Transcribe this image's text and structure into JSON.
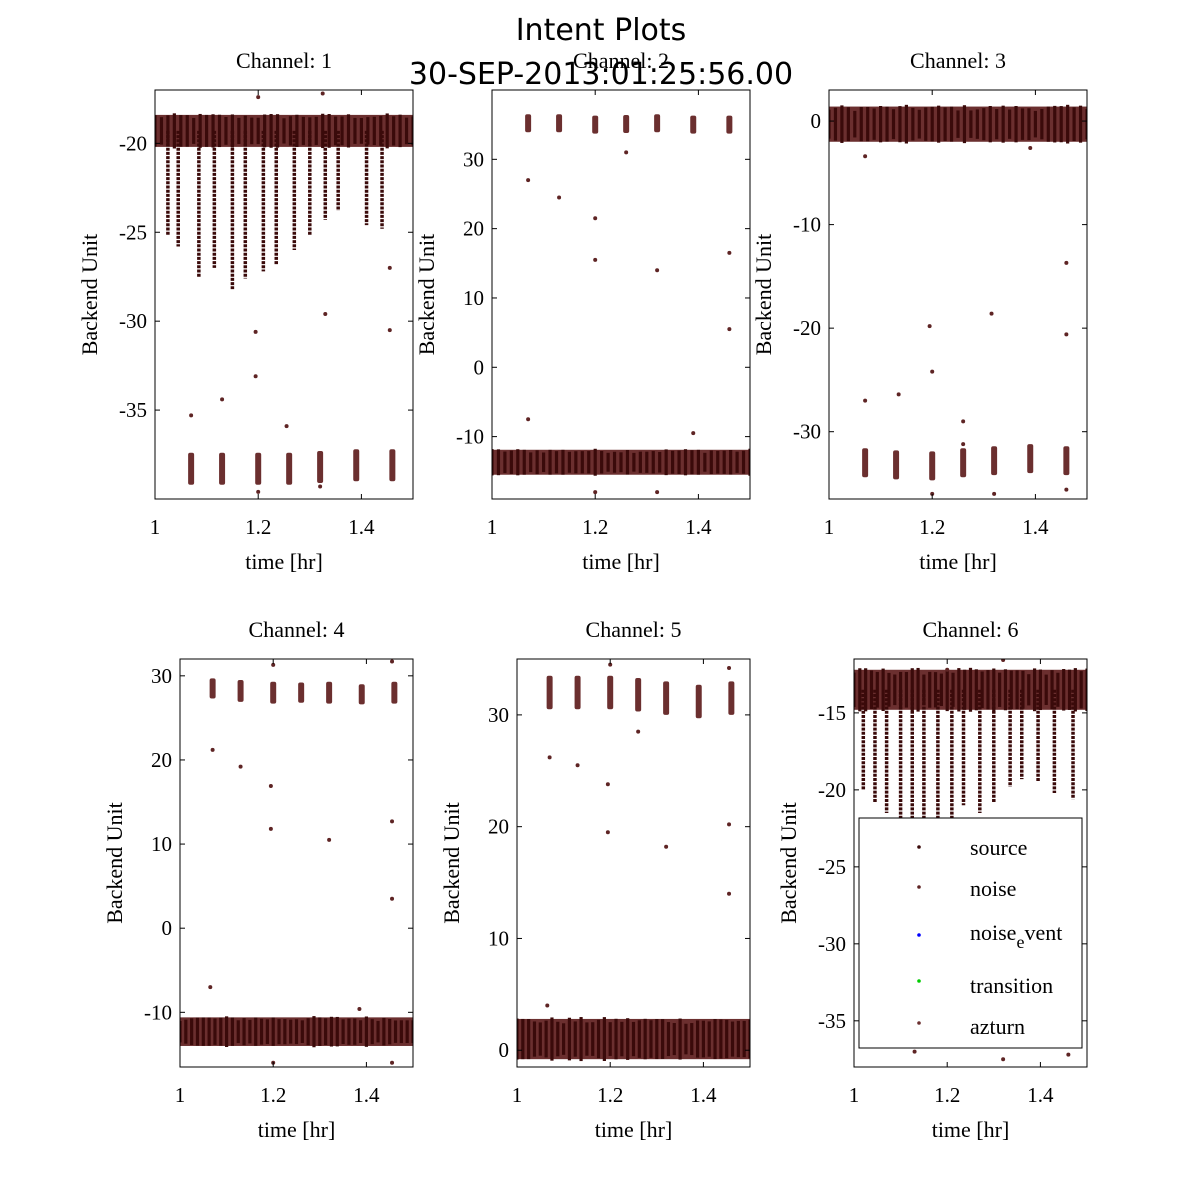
{
  "suptitle": {
    "line1": "Intent Plots",
    "line2": "30-SEP-2013:01:25:56.00"
  },
  "colors": {
    "source": "#3a0a0a",
    "noise": "#5e2424",
    "noise_event": "#0000ff",
    "transition": "#00cc00",
    "azturn": "#6b2f2f",
    "frame": "#000000"
  },
  "legend": {
    "entries": [
      {
        "key": "source",
        "label": "source",
        "label_sub": ""
      },
      {
        "key": "noise",
        "label": "noise",
        "label_sub": ""
      },
      {
        "key": "noise_event",
        "label": "noise",
        "label_sub": "e",
        "label_tail": "vent"
      },
      {
        "key": "transition",
        "label": "transition",
        "label_sub": ""
      },
      {
        "key": "azturn",
        "label": "azturn",
        "label_sub": ""
      }
    ]
  },
  "chart_data": [
    {
      "type": "scatter",
      "title": "Channel: 1",
      "xlabel": "time [hr]",
      "ylabel": "Backend Unit",
      "xlim": [
        1.0,
        1.5
      ],
      "ylim": [
        -40,
        -17
      ],
      "xticks": [
        1,
        1.2,
        1.4
      ],
      "yticks": [
        -20,
        -25,
        -30,
        -35
      ],
      "band": {
        "series": "source",
        "y_center": -19.3,
        "y_halfwidth": 0.9
      },
      "dips": [
        [
          1.025,
          -25.2
        ],
        [
          1.045,
          -25.8
        ],
        [
          1.085,
          -27.5
        ],
        [
          1.115,
          -27.0
        ],
        [
          1.15,
          -28.2
        ],
        [
          1.175,
          -27.6
        ],
        [
          1.21,
          -27.2
        ],
        [
          1.235,
          -26.8
        ],
        [
          1.27,
          -26.0
        ],
        [
          1.3,
          -25.2
        ],
        [
          1.33,
          -24.3
        ],
        [
          1.355,
          -23.8
        ],
        [
          1.41,
          -24.6
        ],
        [
          1.44,
          -24.8
        ]
      ],
      "clusters": [
        [
          1.07,
          -38.3,
          0.9
        ],
        [
          1.13,
          -38.3,
          0.9
        ],
        [
          1.2,
          -38.3,
          0.9
        ],
        [
          1.26,
          -38.3,
          0.9
        ],
        [
          1.32,
          -38.2,
          0.9
        ],
        [
          1.39,
          -38.1,
          0.9
        ],
        [
          1.46,
          -38.1,
          0.9
        ]
      ],
      "outliers": [
        [
          1.07,
          -35.3
        ],
        [
          1.13,
          -34.4
        ],
        [
          1.195,
          -30.6
        ],
        [
          1.195,
          -33.1
        ],
        [
          1.255,
          -35.9
        ],
        [
          1.33,
          -29.6
        ],
        [
          1.455,
          -27.0
        ],
        [
          1.455,
          -30.5
        ],
        [
          1.2,
          -39.6
        ],
        [
          1.32,
          -39.3
        ],
        [
          1.2,
          -17.4
        ],
        [
          1.325,
          -17.2
        ]
      ]
    },
    {
      "type": "scatter",
      "title": "Channel: 2",
      "xlabel": "time [hr]",
      "ylabel": "Backend Unit",
      "xlim": [
        1.0,
        1.5
      ],
      "ylim": [
        -19,
        40
      ],
      "xticks": [
        1,
        1.2,
        1.4
      ],
      "yticks": [
        -10,
        0,
        10,
        20,
        30
      ],
      "band": {
        "series": "source",
        "y_center": -13.7,
        "y_halfwidth": 1.8
      },
      "dips": [],
      "clusters": [
        [
          1.07,
          35.2,
          1.3
        ],
        [
          1.13,
          35.2,
          1.3
        ],
        [
          1.2,
          35.0,
          1.3
        ],
        [
          1.26,
          35.1,
          1.3
        ],
        [
          1.32,
          35.2,
          1.3
        ],
        [
          1.39,
          35.0,
          1.3
        ],
        [
          1.46,
          35.0,
          1.3
        ]
      ],
      "outliers": [
        [
          1.07,
          27.0
        ],
        [
          1.13,
          24.5
        ],
        [
          1.2,
          21.5
        ],
        [
          1.2,
          15.5
        ],
        [
          1.32,
          14.0
        ],
        [
          1.46,
          16.5
        ],
        [
          1.46,
          5.5
        ],
        [
          1.07,
          -7.5
        ],
        [
          1.39,
          -9.5
        ],
        [
          1.26,
          31.0
        ],
        [
          1.2,
          -18.0
        ],
        [
          1.32,
          -18.0
        ]
      ]
    },
    {
      "type": "scatter",
      "title": "Channel: 3",
      "xlabel": "time [hr]",
      "ylabel": "Backend Unit",
      "xlim": [
        1.0,
        1.5
      ],
      "ylim": [
        -36.5,
        3
      ],
      "xticks": [
        1,
        1.2,
        1.4
      ],
      "yticks": [
        0,
        -10,
        -20,
        -30
      ],
      "band": {
        "series": "source",
        "y_center": -0.3,
        "y_halfwidth": 1.7
      },
      "dips": [],
      "clusters": [
        [
          1.07,
          -33.0,
          1.4
        ],
        [
          1.13,
          -33.2,
          1.4
        ],
        [
          1.2,
          -33.3,
          1.4
        ],
        [
          1.26,
          -33.0,
          1.4
        ],
        [
          1.32,
          -32.8,
          1.4
        ],
        [
          1.39,
          -32.6,
          1.4
        ],
        [
          1.46,
          -32.8,
          1.4
        ]
      ],
      "outliers": [
        [
          1.07,
          -27.0
        ],
        [
          1.135,
          -26.4
        ],
        [
          1.195,
          -19.8
        ],
        [
          1.2,
          -24.2
        ],
        [
          1.26,
          -29.0
        ],
        [
          1.315,
          -18.6
        ],
        [
          1.46,
          -13.7
        ],
        [
          1.46,
          -20.6
        ],
        [
          1.07,
          -3.4
        ],
        [
          1.39,
          -2.6
        ],
        [
          1.2,
          -36.0
        ],
        [
          1.32,
          -36.0
        ],
        [
          1.46,
          -35.6
        ],
        [
          1.26,
          -31.2
        ]
      ]
    },
    {
      "type": "scatter",
      "title": "Channel: 4",
      "xlabel": "time [hr]",
      "ylabel": "Backend Unit",
      "xlim": [
        1.0,
        1.5
      ],
      "ylim": [
        -16.5,
        32
      ],
      "xticks": [
        1,
        1.2,
        1.4
      ],
      "yticks": [
        30,
        20,
        10,
        0,
        -10
      ],
      "band": {
        "series": "source",
        "y_center": -12.3,
        "y_halfwidth": 1.7
      },
      "dips": [],
      "clusters": [
        [
          1.07,
          28.5,
          1.2
        ],
        [
          1.13,
          28.2,
          1.3
        ],
        [
          1.2,
          28.0,
          1.3
        ],
        [
          1.26,
          28.0,
          1.2
        ],
        [
          1.32,
          28.0,
          1.3
        ],
        [
          1.39,
          27.8,
          1.2
        ],
        [
          1.46,
          28.0,
          1.3
        ]
      ],
      "outliers": [
        [
          1.07,
          21.2
        ],
        [
          1.13,
          19.2
        ],
        [
          1.195,
          16.9
        ],
        [
          1.195,
          11.8
        ],
        [
          1.32,
          10.5
        ],
        [
          1.455,
          12.7
        ],
        [
          1.455,
          3.5
        ],
        [
          1.065,
          -7.0
        ],
        [
          1.385,
          -9.6
        ],
        [
          1.2,
          31.3
        ],
        [
          1.455,
          31.7
        ],
        [
          1.2,
          -16.0
        ],
        [
          1.455,
          -16.0
        ]
      ]
    },
    {
      "type": "scatter",
      "title": "Channel: 5",
      "xlabel": "time [hr]",
      "ylabel": "Backend Unit",
      "xlim": [
        1.0,
        1.5
      ],
      "ylim": [
        -1.5,
        35
      ],
      "xticks": [
        1,
        1.2,
        1.4
      ],
      "yticks": [
        0,
        10,
        20,
        30
      ],
      "band": {
        "series": "source",
        "y_center": 1.0,
        "y_halfwidth": 1.8
      },
      "dips": [],
      "clusters": [
        [
          1.07,
          32.0,
          1.5
        ],
        [
          1.13,
          32.0,
          1.5
        ],
        [
          1.2,
          32.0,
          1.5
        ],
        [
          1.26,
          31.8,
          1.5
        ],
        [
          1.32,
          31.5,
          1.5
        ],
        [
          1.39,
          31.2,
          1.5
        ],
        [
          1.46,
          31.5,
          1.5
        ]
      ],
      "outliers": [
        [
          1.07,
          26.2
        ],
        [
          1.13,
          25.5
        ],
        [
          1.195,
          23.8
        ],
        [
          1.195,
          19.5
        ],
        [
          1.32,
          18.2
        ],
        [
          1.455,
          20.2
        ],
        [
          1.455,
          14.0
        ],
        [
          1.065,
          4.0
        ],
        [
          1.26,
          28.5
        ],
        [
          1.2,
          34.5
        ],
        [
          1.455,
          34.2
        ]
      ]
    },
    {
      "type": "scatter",
      "title": "Channel: 6",
      "xlabel": "time [hr]",
      "ylabel": "Backend Unit",
      "xlim": [
        1.0,
        1.5
      ],
      "ylim": [
        -38,
        -11.5
      ],
      "xticks": [
        1,
        1.2,
        1.4
      ],
      "yticks": [
        -15,
        -20,
        -25,
        -30,
        -35
      ],
      "band": {
        "series": "source",
        "y_center": -13.5,
        "y_halfwidth": 1.3
      },
      "dips": [
        [
          1.02,
          -20.0
        ],
        [
          1.045,
          -20.8
        ],
        [
          1.07,
          -21.5
        ],
        [
          1.1,
          -21.8
        ],
        [
          1.125,
          -22.5
        ],
        [
          1.15,
          -22.5
        ],
        [
          1.18,
          -22.0
        ],
        [
          1.21,
          -22.2
        ],
        [
          1.235,
          -21.0
        ],
        [
          1.27,
          -21.5
        ],
        [
          1.3,
          -20.8
        ],
        [
          1.335,
          -19.8
        ],
        [
          1.36,
          -19.3
        ],
        [
          1.395,
          -19.5
        ],
        [
          1.43,
          -20.2
        ],
        [
          1.47,
          -20.6
        ]
      ],
      "clusters": [],
      "outliers": [
        [
          1.07,
          -36.5
        ],
        [
          1.13,
          -37.0
        ],
        [
          1.2,
          -36.2
        ],
        [
          1.26,
          -36.4
        ],
        [
          1.32,
          -37.5
        ],
        [
          1.39,
          -36.0
        ],
        [
          1.46,
          -37.2
        ],
        [
          1.32,
          -11.5
        ],
        [
          1.2,
          -12.2
        ]
      ]
    }
  ]
}
